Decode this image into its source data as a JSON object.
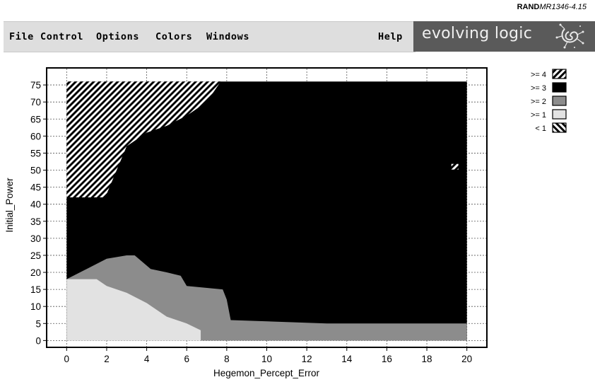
{
  "reference": {
    "prefix": "RAND",
    "code": "MR1346-4.15"
  },
  "menu": {
    "file": "File",
    "control": "Control",
    "options": "Options",
    "colors": "Colors",
    "windows": "Windows",
    "help": "Help"
  },
  "brand": {
    "name": "evolving logic",
    "logo_icon": "spiral-logo-icon"
  },
  "colors": {
    "hatch": "#ffffff",
    "black": "#000000",
    "dark_gray": "#8c8c8c",
    "light_gray": "#e2e2e2",
    "menubar": "#dedede",
    "brand_bg": "#5a5a5a"
  },
  "legend": [
    {
      "label": ">= 4",
      "fill": "hatch"
    },
    {
      "label": ">= 3",
      "fill": "black"
    },
    {
      "label": ">= 2",
      "fill": "dark_gray"
    },
    {
      "label": ">= 1",
      "fill": "light_gray"
    },
    {
      "label": "< 1",
      "fill": "inverse_hatch"
    }
  ],
  "chart_data": {
    "type": "heatmap",
    "title": "",
    "xlabel": "Hegemon_Percept_Error",
    "ylabel": "Initial_Power",
    "xlim": [
      -1,
      21
    ],
    "ylim": [
      -2,
      80
    ],
    "xticks": [
      0,
      2,
      4,
      6,
      8,
      10,
      12,
      14,
      16,
      18,
      20
    ],
    "yticks": [
      0,
      5,
      10,
      15,
      20,
      25,
      30,
      35,
      40,
      45,
      50,
      55,
      60,
      65,
      70,
      75
    ],
    "grid": "dotted",
    "legend_position": "top-right",
    "regions": [
      {
        "level": ">= 4",
        "description": "hatched region upper-left",
        "boundary": [
          [
            0,
            76
          ],
          [
            7.7,
            76
          ],
          [
            7,
            70
          ],
          [
            6,
            66
          ],
          [
            5,
            63
          ],
          [
            4,
            61
          ],
          [
            3,
            57
          ],
          [
            2.5,
            50
          ],
          [
            2,
            43
          ],
          [
            1.8,
            42
          ],
          [
            0,
            42
          ]
        ]
      },
      {
        "level": ">= 3",
        "description": "black region filling remainder of plot",
        "xrange": [
          0,
          20
        ],
        "yrange": [
          0,
          76
        ]
      },
      {
        "level": ">= 2",
        "description": "gray region lower band",
        "boundary": [
          [
            0,
            18
          ],
          [
            1,
            21
          ],
          [
            2,
            24
          ],
          [
            3,
            25
          ],
          [
            3.4,
            25
          ],
          [
            3.8,
            23
          ],
          [
            4.2,
            21
          ],
          [
            5,
            20
          ],
          [
            5.7,
            19
          ],
          [
            6,
            16
          ],
          [
            7.8,
            15
          ],
          [
            8,
            12
          ],
          [
            8.2,
            6
          ],
          [
            13,
            5
          ],
          [
            20,
            5
          ],
          [
            20,
            0
          ],
          [
            0,
            0
          ]
        ]
      },
      {
        "level": ">= 1",
        "description": "light gray region bottom-left",
        "boundary": [
          [
            0,
            18
          ],
          [
            1.5,
            18
          ],
          [
            2,
            16
          ],
          [
            3,
            14
          ],
          [
            4,
            11
          ],
          [
            5,
            7
          ],
          [
            6,
            5
          ],
          [
            6.7,
            3
          ],
          [
            6.7,
            0
          ],
          [
            0,
            0
          ]
        ]
      },
      {
        "level": ">= 4",
        "description": "small hatched speck",
        "point": [
          19.4,
          51
        ]
      }
    ]
  }
}
